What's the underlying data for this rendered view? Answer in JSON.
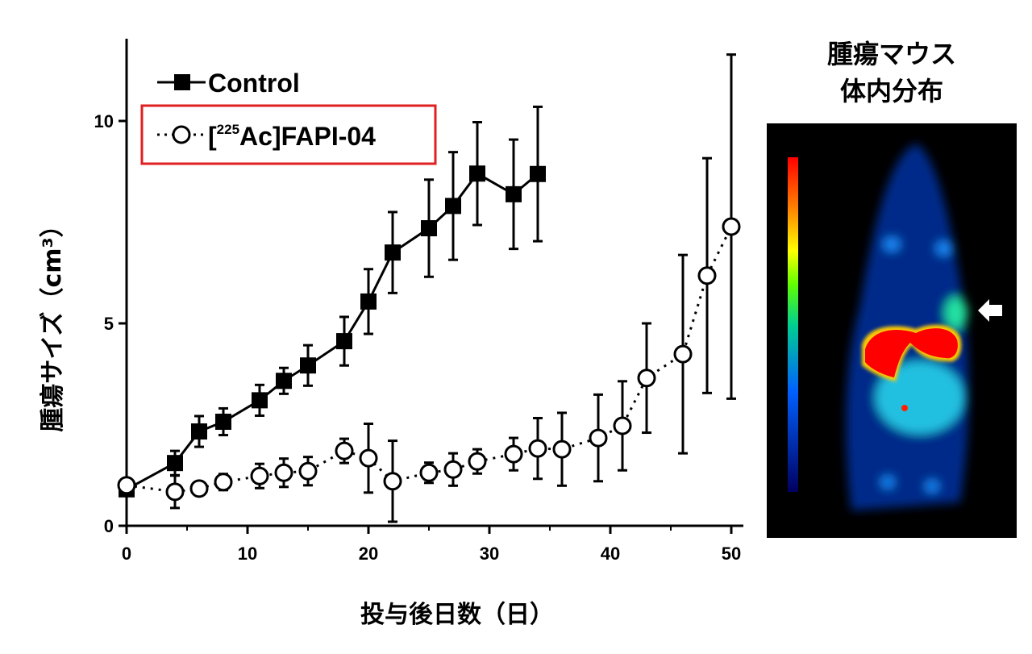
{
  "chart_data": {
    "type": "line",
    "xlabel": "投与後日数（日）",
    "ylabel": "腫瘍サイズ（cm³）",
    "xlim": [
      0,
      50
    ],
    "ylim": [
      0,
      12
    ],
    "xticks": [
      0,
      10,
      20,
      30,
      40,
      50
    ],
    "yticks": [
      0,
      5,
      10
    ],
    "grid": false,
    "legend_placement": "top-left",
    "series": [
      {
        "name": "Control",
        "marker": "filled-square",
        "line": "solid",
        "x": [
          0,
          4,
          6,
          8,
          11,
          13,
          15,
          18,
          20,
          22,
          25,
          27,
          29,
          32,
          34
        ],
        "y": [
          0.9,
          1.55,
          2.33,
          2.57,
          3.1,
          3.58,
          3.96,
          4.56,
          5.54,
          6.75,
          7.35,
          7.9,
          8.7,
          8.19,
          8.69
        ],
        "error": [
          0.1,
          0.3,
          0.38,
          0.33,
          0.38,
          0.32,
          0.5,
          0.6,
          0.8,
          1.0,
          1.2,
          1.33,
          1.27,
          1.35,
          1.66
        ]
      },
      {
        "name": "[225Ac]FAPI-04",
        "name_prefix": "[",
        "name_sup": "225",
        "name_suffix": "Ac]FAPI-04",
        "marker": "open-circle",
        "line": "dotted",
        "highlight_color": "#e02020",
        "x": [
          0,
          4,
          6,
          8,
          11,
          13,
          15,
          18,
          20,
          22,
          25,
          27,
          29,
          32,
          34,
          36,
          39,
          41,
          43,
          46,
          48,
          50
        ],
        "y": [
          1.0,
          0.84,
          0.92,
          1.08,
          1.23,
          1.31,
          1.35,
          1.85,
          1.67,
          1.1,
          1.31,
          1.39,
          1.59,
          1.77,
          1.91,
          1.89,
          2.17,
          2.47,
          3.65,
          4.24,
          6.18,
          7.39
        ],
        "error": [
          0.1,
          0.4,
          0.15,
          0.2,
          0.3,
          0.35,
          0.35,
          0.3,
          0.85,
          1.0,
          0.25,
          0.4,
          0.3,
          0.4,
          0.75,
          0.9,
          1.07,
          1.1,
          1.35,
          2.45,
          2.9,
          4.25
        ]
      }
    ]
  },
  "image_panel": {
    "title_line1": "腫瘍マウス",
    "title_line2": "体内分布",
    "colormap": [
      "#000080",
      "#0060ff",
      "#00e0c0",
      "#40ff00",
      "#ffff00",
      "#ff8000",
      "#ff0000"
    ],
    "arrow_icon": "arrow-left-icon"
  }
}
